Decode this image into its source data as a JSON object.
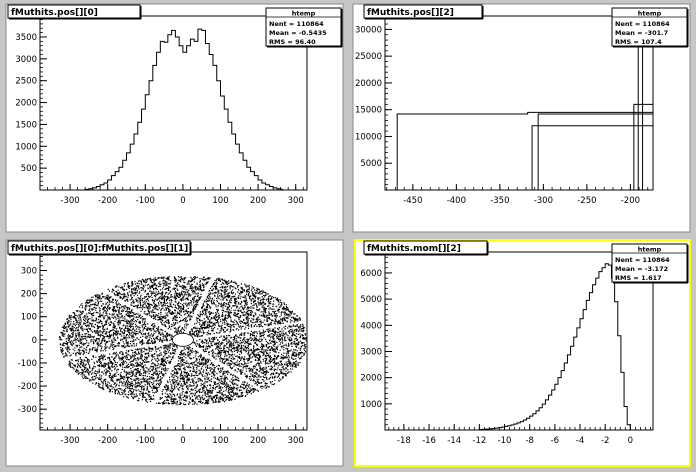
{
  "canvas": {
    "background": "#c6c6c6",
    "pad_bg": "#ffffff",
    "ink": "#000000",
    "selected_border": "#ffff00"
  },
  "chart_data": [
    {
      "type": "bar",
      "title": "fMuthits.pos[][0]",
      "xlim": [
        -380,
        330
      ],
      "ylim": [
        0,
        3980
      ],
      "x_ticks": [
        -300,
        -200,
        -100,
        0,
        100,
        200,
        300
      ],
      "x_tick_labels": [
        "-300",
        "-200",
        "-100",
        "0",
        "100",
        "200",
        "300"
      ],
      "y_ticks": [
        500,
        1000,
        1500,
        2000,
        2500,
        3000,
        3500
      ],
      "y_tick_labels": [
        "500",
        "1000",
        "1500",
        "2000",
        "2500",
        "3000",
        "3500"
      ],
      "stats": {
        "name": "htemp",
        "lines": [
          "Nent = 110864",
          "Mean  = -0.5435",
          "RMS   = 96.40"
        ]
      },
      "series": [
        {
          "bins": [
            [
              -260,
              15
            ],
            [
              -250,
              30
            ],
            [
              -240,
              50
            ],
            [
              -230,
              80
            ],
            [
              -220,
              120
            ],
            [
              -210,
              160
            ],
            [
              -200,
              230
            ],
            [
              -190,
              330
            ],
            [
              -180,
              420
            ],
            [
              -170,
              520
            ],
            [
              -160,
              680
            ],
            [
              -150,
              850
            ],
            [
              -140,
              1050
            ],
            [
              -130,
              1280
            ],
            [
              -120,
              1550
            ],
            [
              -110,
              1850
            ],
            [
              -100,
              2180
            ],
            [
              -90,
              2500
            ],
            [
              -80,
              2850
            ],
            [
              -70,
              3150
            ],
            [
              -60,
              3400
            ],
            [
              -50,
              3380
            ],
            [
              -40,
              3550
            ],
            [
              -30,
              3650
            ],
            [
              -20,
              3500
            ],
            [
              -10,
              3300
            ],
            [
              0,
              3150
            ],
            [
              10,
              3300
            ],
            [
              20,
              3450
            ],
            [
              30,
              3400
            ],
            [
              40,
              3680
            ],
            [
              50,
              3650
            ],
            [
              60,
              3350
            ],
            [
              70,
              3100
            ],
            [
              80,
              2850
            ],
            [
              90,
              2500
            ],
            [
              100,
              2150
            ],
            [
              110,
              1850
            ],
            [
              120,
              1550
            ],
            [
              130,
              1280
            ],
            [
              140,
              1050
            ],
            [
              150,
              850
            ],
            [
              160,
              680
            ],
            [
              170,
              520
            ],
            [
              180,
              420
            ],
            [
              190,
              330
            ],
            [
              200,
              230
            ],
            [
              210,
              160
            ],
            [
              220,
              120
            ],
            [
              230,
              80
            ],
            [
              240,
              50
            ],
            [
              250,
              30
            ],
            [
              260,
              15
            ]
          ]
        }
      ]
    },
    {
      "type": "bar",
      "title": "fMuthits.pos[][2]",
      "xlim": [
        -482,
        -174
      ],
      "ylim": [
        0,
        32500
      ],
      "x_ticks": [
        -450,
        -400,
        -350,
        -300,
        -250,
        -200
      ],
      "x_tick_labels": [
        "-450",
        "-400",
        "-350",
        "-300",
        "-250",
        "-200"
      ],
      "y_ticks": [
        5000,
        10000,
        15000,
        20000,
        25000,
        30000
      ],
      "y_tick_labels": [
        "5000",
        "10000",
        "15000",
        "20000",
        "25000",
        "30000"
      ],
      "stats": {
        "name": "htemp",
        "lines": [
          "Nent = 110864",
          "Mean  = -301.7",
          "RMS   = 107.4"
        ]
      },
      "series": [
        {
          "bins": [
            [
              -468,
              14200
            ],
            [
              -318,
              14500
            ],
            [
              -313,
              12000
            ],
            [
              -306,
              14200
            ],
            [
              -196,
              16000
            ],
            [
              -191,
              32000
            ]
          ]
        }
      ]
    },
    {
      "type": "scatter",
      "title": "fMuthits.pos[][0]:fMuthits.pos[][1]",
      "xlim": [
        -380,
        330
      ],
      "ylim": [
        -390,
        380
      ],
      "x_ticks": [
        -300,
        -200,
        -100,
        0,
        100,
        200,
        300
      ],
      "x_tick_labels": [
        "-300",
        "-200",
        "-100",
        "0",
        "100",
        "200",
        "300"
      ],
      "y_ticks": [
        -300,
        -200,
        -100,
        0,
        100,
        200,
        300
      ],
      "y_tick_labels": [
        "-300",
        "-200",
        "-100",
        "0",
        "100",
        "200",
        "300"
      ],
      "ellipse": {
        "rx": 330,
        "ry": 280
      },
      "hole_radius": 28,
      "spoke_angles_deg": [
        14,
        74,
        134,
        194,
        254,
        314
      ]
    },
    {
      "type": "bar",
      "title": "fMuthits.mom[][2]",
      "xlim": [
        -19.5,
        1.8
      ],
      "ylim": [
        0,
        6800
      ],
      "x_ticks": [
        -18,
        -16,
        -14,
        -12,
        -10,
        -8,
        -6,
        -4,
        -2,
        0
      ],
      "x_tick_labels": [
        "-18",
        "-16",
        "-14",
        "-12",
        "-10",
        "-8",
        "-6",
        "-4",
        "-2",
        "0"
      ],
      "y_ticks": [
        1000,
        2000,
        3000,
        4000,
        5000,
        6000
      ],
      "y_tick_labels": [
        "1000",
        "2000",
        "3000",
        "4000",
        "5000",
        "6000"
      ],
      "stats": {
        "name": "htemp",
        "lines": [
          "Nent = 110864",
          "Mean  = -3.172",
          "RMS   = 1.617"
        ]
      },
      "series": [
        {
          "bins": [
            [
              -12,
              20
            ],
            [
              -11.75,
              25
            ],
            [
              -11.5,
              35
            ],
            [
              -11.25,
              45
            ],
            [
              -11,
              55
            ],
            [
              -10.75,
              70
            ],
            [
              -10.5,
              90
            ],
            [
              -10.25,
              110
            ],
            [
              -10,
              140
            ],
            [
              -9.75,
              160
            ],
            [
              -9.5,
              190
            ],
            [
              -9.25,
              230
            ],
            [
              -9,
              270
            ],
            [
              -8.75,
              320
            ],
            [
              -8.5,
              380
            ],
            [
              -8.25,
              450
            ],
            [
              -8,
              530
            ],
            [
              -7.75,
              620
            ],
            [
              -7.5,
              730
            ],
            [
              -7.25,
              850
            ],
            [
              -7,
              990
            ],
            [
              -6.75,
              1150
            ],
            [
              -6.5,
              1330
            ],
            [
              -6.25,
              1530
            ],
            [
              -6,
              1750
            ],
            [
              -5.75,
              2000
            ],
            [
              -5.5,
              2270
            ],
            [
              -5.25,
              2560
            ],
            [
              -5,
              2870
            ],
            [
              -4.75,
              3200
            ],
            [
              -4.5,
              3550
            ],
            [
              -4.25,
              3900
            ],
            [
              -4,
              4250
            ],
            [
              -3.75,
              4600
            ],
            [
              -3.5,
              4950
            ],
            [
              -3.25,
              5250
            ],
            [
              -3,
              5550
            ],
            [
              -2.75,
              5800
            ],
            [
              -2.5,
              6050
            ],
            [
              -2.25,
              6200
            ],
            [
              -2,
              6350
            ],
            [
              -1.75,
              6300
            ],
            [
              -1.5,
              5800
            ],
            [
              -1.25,
              4900
            ],
            [
              -1,
              3600
            ],
            [
              -0.75,
              2200
            ],
            [
              -0.5,
              900
            ],
            [
              -0.25,
              200
            ]
          ]
        }
      ]
    }
  ]
}
